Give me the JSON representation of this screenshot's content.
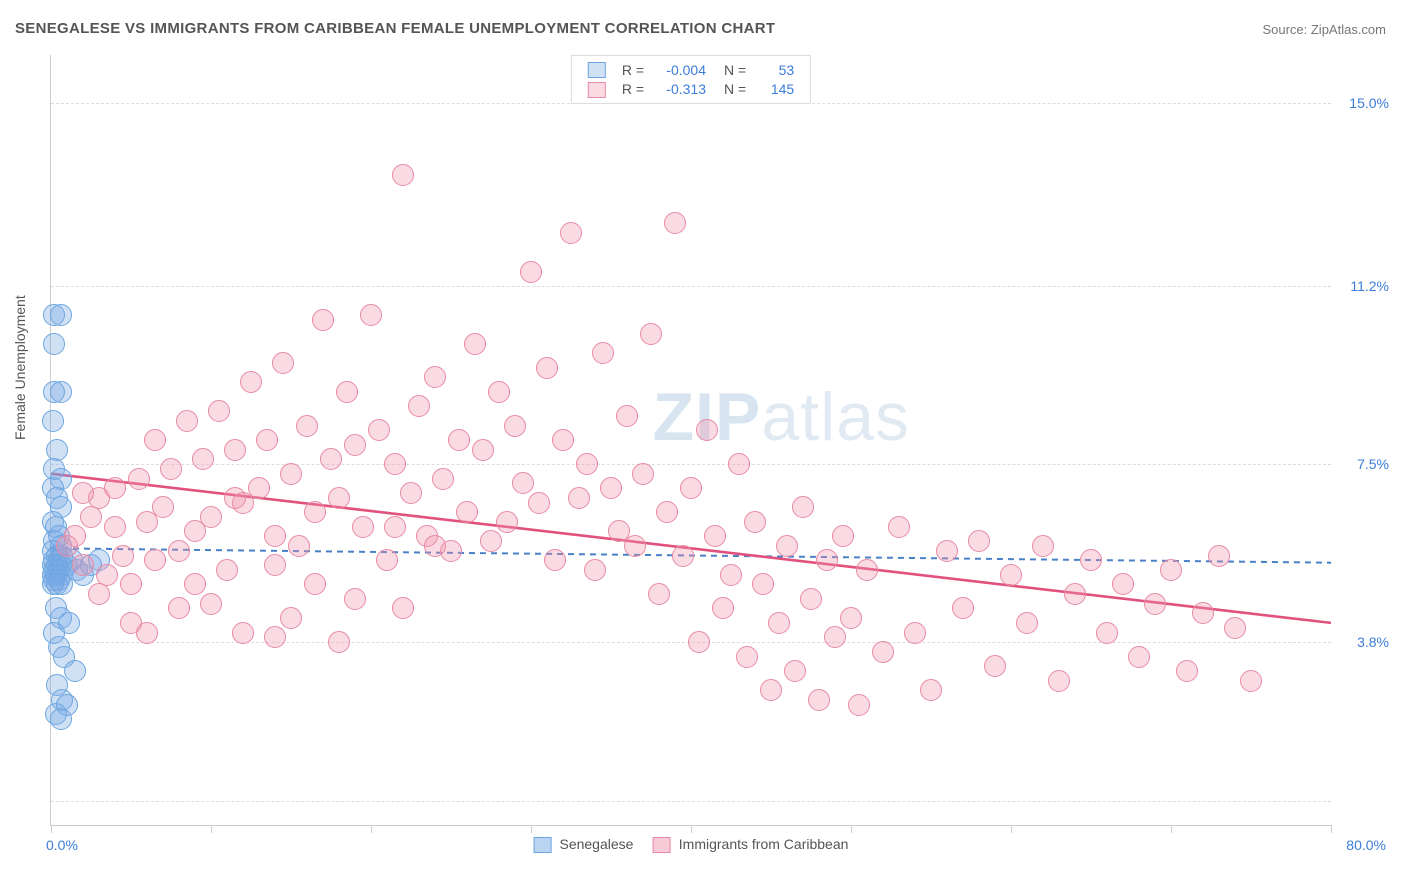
{
  "title": "SENEGALESE VS IMMIGRANTS FROM CARIBBEAN FEMALE UNEMPLOYMENT CORRELATION CHART",
  "source_prefix": "Source: ",
  "source_name": "ZipAtlas.com",
  "y_axis_label": "Female Unemployment",
  "watermark": {
    "bold": "ZIP",
    "rest": "atlas"
  },
  "chart": {
    "type": "scatter-with-regression",
    "xlim": [
      0,
      80
    ],
    "ylim": [
      0,
      16
    ],
    "x_tick_positions": [
      0,
      10,
      20,
      30,
      40,
      50,
      60,
      70,
      80
    ],
    "x_min_label": "0.0%",
    "x_max_label": "80.0%",
    "y_ticks": [
      {
        "value": 3.8,
        "label": "3.8%"
      },
      {
        "value": 7.5,
        "label": "7.5%"
      },
      {
        "value": 11.2,
        "label": "11.2%"
      },
      {
        "value": 15.0,
        "label": "15.0%"
      }
    ],
    "y_gridlines": [
      0.5,
      3.8,
      7.5,
      11.2,
      15.0
    ],
    "background_color": "#ffffff",
    "grid_color": "#dddddd",
    "marker_radius": 10,
    "marker_stroke_width": 1.2,
    "series": [
      {
        "name": "Senegalese",
        "fill": "rgba(120,170,230,0.35)",
        "stroke": "#6da6e0",
        "r_label": "R =",
        "r_value": "-0.004",
        "n_label": "N =",
        "n_value": "53",
        "trend": {
          "x1": 0,
          "y1": 5.75,
          "x2": 80,
          "y2": 5.45,
          "color": "#4a80c7",
          "width": 2,
          "dash": "6,5"
        },
        "points": [
          [
            0.2,
            10.6
          ],
          [
            0.6,
            10.6
          ],
          [
            0.2,
            10.0
          ],
          [
            0.2,
            9.0
          ],
          [
            0.6,
            9.0
          ],
          [
            0.1,
            8.4
          ],
          [
            0.4,
            7.8
          ],
          [
            0.2,
            7.4
          ],
          [
            0.6,
            7.2
          ],
          [
            0.1,
            7.0
          ],
          [
            0.4,
            6.8
          ],
          [
            0.6,
            6.6
          ],
          [
            0.1,
            6.3
          ],
          [
            0.3,
            6.2
          ],
          [
            0.5,
            6.0
          ],
          [
            0.2,
            5.9
          ],
          [
            0.6,
            5.8
          ],
          [
            0.1,
            5.7
          ],
          [
            0.4,
            5.6
          ],
          [
            0.7,
            5.6
          ],
          [
            0.2,
            5.5
          ],
          [
            0.5,
            5.5
          ],
          [
            0.1,
            5.4
          ],
          [
            0.4,
            5.4
          ],
          [
            0.6,
            5.4
          ],
          [
            0.2,
            5.3
          ],
          [
            0.5,
            5.3
          ],
          [
            0.1,
            5.2
          ],
          [
            0.3,
            5.2
          ],
          [
            0.6,
            5.2
          ],
          [
            0.2,
            5.1
          ],
          [
            0.5,
            5.1
          ],
          [
            0.1,
            5.0
          ],
          [
            0.4,
            5.0
          ],
          [
            0.7,
            5.0
          ],
          [
            1.0,
            5.4
          ],
          [
            1.3,
            5.5
          ],
          [
            1.6,
            5.3
          ],
          [
            2.0,
            5.2
          ],
          [
            2.5,
            5.4
          ],
          [
            3.0,
            5.5
          ],
          [
            0.3,
            4.5
          ],
          [
            0.6,
            4.3
          ],
          [
            0.2,
            4.0
          ],
          [
            0.5,
            3.7
          ],
          [
            0.8,
            3.5
          ],
          [
            1.1,
            4.2
          ],
          [
            1.5,
            3.2
          ],
          [
            0.4,
            2.9
          ],
          [
            0.7,
            2.6
          ],
          [
            0.3,
            2.3
          ],
          [
            0.6,
            2.2
          ],
          [
            1.0,
            2.5
          ]
        ]
      },
      {
        "name": "Immigrants from Caribbean",
        "fill": "rgba(240,150,175,0.35)",
        "stroke": "#e88aa5",
        "r_label": "R =",
        "r_value": "-0.313",
        "n_label": "N =",
        "n_value": "145",
        "trend": {
          "x1": 0,
          "y1": 7.3,
          "x2": 80,
          "y2": 4.2,
          "color": "#e0517c",
          "width": 2.6,
          "dash": null
        },
        "points": [
          [
            1.0,
            5.8
          ],
          [
            1.5,
            6.0
          ],
          [
            2.0,
            5.4
          ],
          [
            2.5,
            6.4
          ],
          [
            3.0,
            6.8
          ],
          [
            3.5,
            5.2
          ],
          [
            4.0,
            7.0
          ],
          [
            4.5,
            5.6
          ],
          [
            5.0,
            5.0
          ],
          [
            5.5,
            7.2
          ],
          [
            6.0,
            6.3
          ],
          [
            6.5,
            8.0
          ],
          [
            7.0,
            6.6
          ],
          [
            7.5,
            7.4
          ],
          [
            8.0,
            5.7
          ],
          [
            8.5,
            8.4
          ],
          [
            9.0,
            6.1
          ],
          [
            9.5,
            7.6
          ],
          [
            10.0,
            6.4
          ],
          [
            10.5,
            8.6
          ],
          [
            11.0,
            5.3
          ],
          [
            11.5,
            7.8
          ],
          [
            12.0,
            6.7
          ],
          [
            12.5,
            9.2
          ],
          [
            13.0,
            7.0
          ],
          [
            13.5,
            8.0
          ],
          [
            14.0,
            6.0
          ],
          [
            14.5,
            9.6
          ],
          [
            15.0,
            7.3
          ],
          [
            15.5,
            5.8
          ],
          [
            16.0,
            8.3
          ],
          [
            16.5,
            6.5
          ],
          [
            17.0,
            10.5
          ],
          [
            17.5,
            7.6
          ],
          [
            18.0,
            6.8
          ],
          [
            18.5,
            9.0
          ],
          [
            19.0,
            7.9
          ],
          [
            19.5,
            6.2
          ],
          [
            20.0,
            10.6
          ],
          [
            20.5,
            8.2
          ],
          [
            21.0,
            5.5
          ],
          [
            21.5,
            7.5
          ],
          [
            22.0,
            13.5
          ],
          [
            22.5,
            6.9
          ],
          [
            23.0,
            8.7
          ],
          [
            23.5,
            6.0
          ],
          [
            24.0,
            9.3
          ],
          [
            24.5,
            7.2
          ],
          [
            25.0,
            5.7
          ],
          [
            25.5,
            8.0
          ],
          [
            26.0,
            6.5
          ],
          [
            26.5,
            10.0
          ],
          [
            27.0,
            7.8
          ],
          [
            27.5,
            5.9
          ],
          [
            28.0,
            9.0
          ],
          [
            28.5,
            6.3
          ],
          [
            29.0,
            8.3
          ],
          [
            29.5,
            7.1
          ],
          [
            30.0,
            11.5
          ],
          [
            30.5,
            6.7
          ],
          [
            31.0,
            9.5
          ],
          [
            31.5,
            5.5
          ],
          [
            32.0,
            8.0
          ],
          [
            32.5,
            12.3
          ],
          [
            33.0,
            6.8
          ],
          [
            33.5,
            7.5
          ],
          [
            34.0,
            5.3
          ],
          [
            34.5,
            9.8
          ],
          [
            35.0,
            7.0
          ],
          [
            35.5,
            6.1
          ],
          [
            36.0,
            8.5
          ],
          [
            36.5,
            5.8
          ],
          [
            37.0,
            7.3
          ],
          [
            37.5,
            10.2
          ],
          [
            38.0,
            4.8
          ],
          [
            38.5,
            6.5
          ],
          [
            39.0,
            12.5
          ],
          [
            39.5,
            5.6
          ],
          [
            40.0,
            7.0
          ],
          [
            40.5,
            3.8
          ],
          [
            41.0,
            8.2
          ],
          [
            41.5,
            6.0
          ],
          [
            42.0,
            4.5
          ],
          [
            42.5,
            5.2
          ],
          [
            43.0,
            7.5
          ],
          [
            43.5,
            3.5
          ],
          [
            44.0,
            6.3
          ],
          [
            44.5,
            5.0
          ],
          [
            45.0,
            2.8
          ],
          [
            45.5,
            4.2
          ],
          [
            46.0,
            5.8
          ],
          [
            46.5,
            3.2
          ],
          [
            47.0,
            6.6
          ],
          [
            47.5,
            4.7
          ],
          [
            48.0,
            2.6
          ],
          [
            48.5,
            5.5
          ],
          [
            49.0,
            3.9
          ],
          [
            49.5,
            6.0
          ],
          [
            50.0,
            4.3
          ],
          [
            50.5,
            2.5
          ],
          [
            51.0,
            5.3
          ],
          [
            52.0,
            3.6
          ],
          [
            53.0,
            6.2
          ],
          [
            54.0,
            4.0
          ],
          [
            55.0,
            2.8
          ],
          [
            56.0,
            5.7
          ],
          [
            57.0,
            4.5
          ],
          [
            58.0,
            5.9
          ],
          [
            59.0,
            3.3
          ],
          [
            60.0,
            5.2
          ],
          [
            61.0,
            4.2
          ],
          [
            62.0,
            5.8
          ],
          [
            63.0,
            3.0
          ],
          [
            64.0,
            4.8
          ],
          [
            65.0,
            5.5
          ],
          [
            66.0,
            4.0
          ],
          [
            67.0,
            5.0
          ],
          [
            68.0,
            3.5
          ],
          [
            69.0,
            4.6
          ],
          [
            70.0,
            5.3
          ],
          [
            71.0,
            3.2
          ],
          [
            72.0,
            4.4
          ],
          [
            73.0,
            5.6
          ],
          [
            74.0,
            4.1
          ],
          [
            75.0,
            3.0
          ],
          [
            5.0,
            4.2
          ],
          [
            8.0,
            4.5
          ],
          [
            12.0,
            4.0
          ],
          [
            15.0,
            4.3
          ],
          [
            18.0,
            3.8
          ],
          [
            22.0,
            4.5
          ],
          [
            3.0,
            4.8
          ],
          [
            6.0,
            4.0
          ],
          [
            10.0,
            4.6
          ],
          [
            14.0,
            3.9
          ],
          [
            2.0,
            6.9
          ],
          [
            4.0,
            6.2
          ],
          [
            6.5,
            5.5
          ],
          [
            9.0,
            5.0
          ],
          [
            11.5,
            6.8
          ],
          [
            14.0,
            5.4
          ],
          [
            16.5,
            5.0
          ],
          [
            19.0,
            4.7
          ],
          [
            21.5,
            6.2
          ],
          [
            24.0,
            5.8
          ]
        ]
      }
    ]
  },
  "legend_bottom": {
    "items": [
      {
        "label": "Senegalese",
        "fill": "rgba(120,170,230,0.5)",
        "stroke": "#6da6e0"
      },
      {
        "label": "Immigrants from Caribbean",
        "fill": "rgba(240,150,175,0.5)",
        "stroke": "#e88aa5"
      }
    ]
  },
  "legend_top_stat_color": "#3b7dd8",
  "legend_top_label_color": "#555555"
}
